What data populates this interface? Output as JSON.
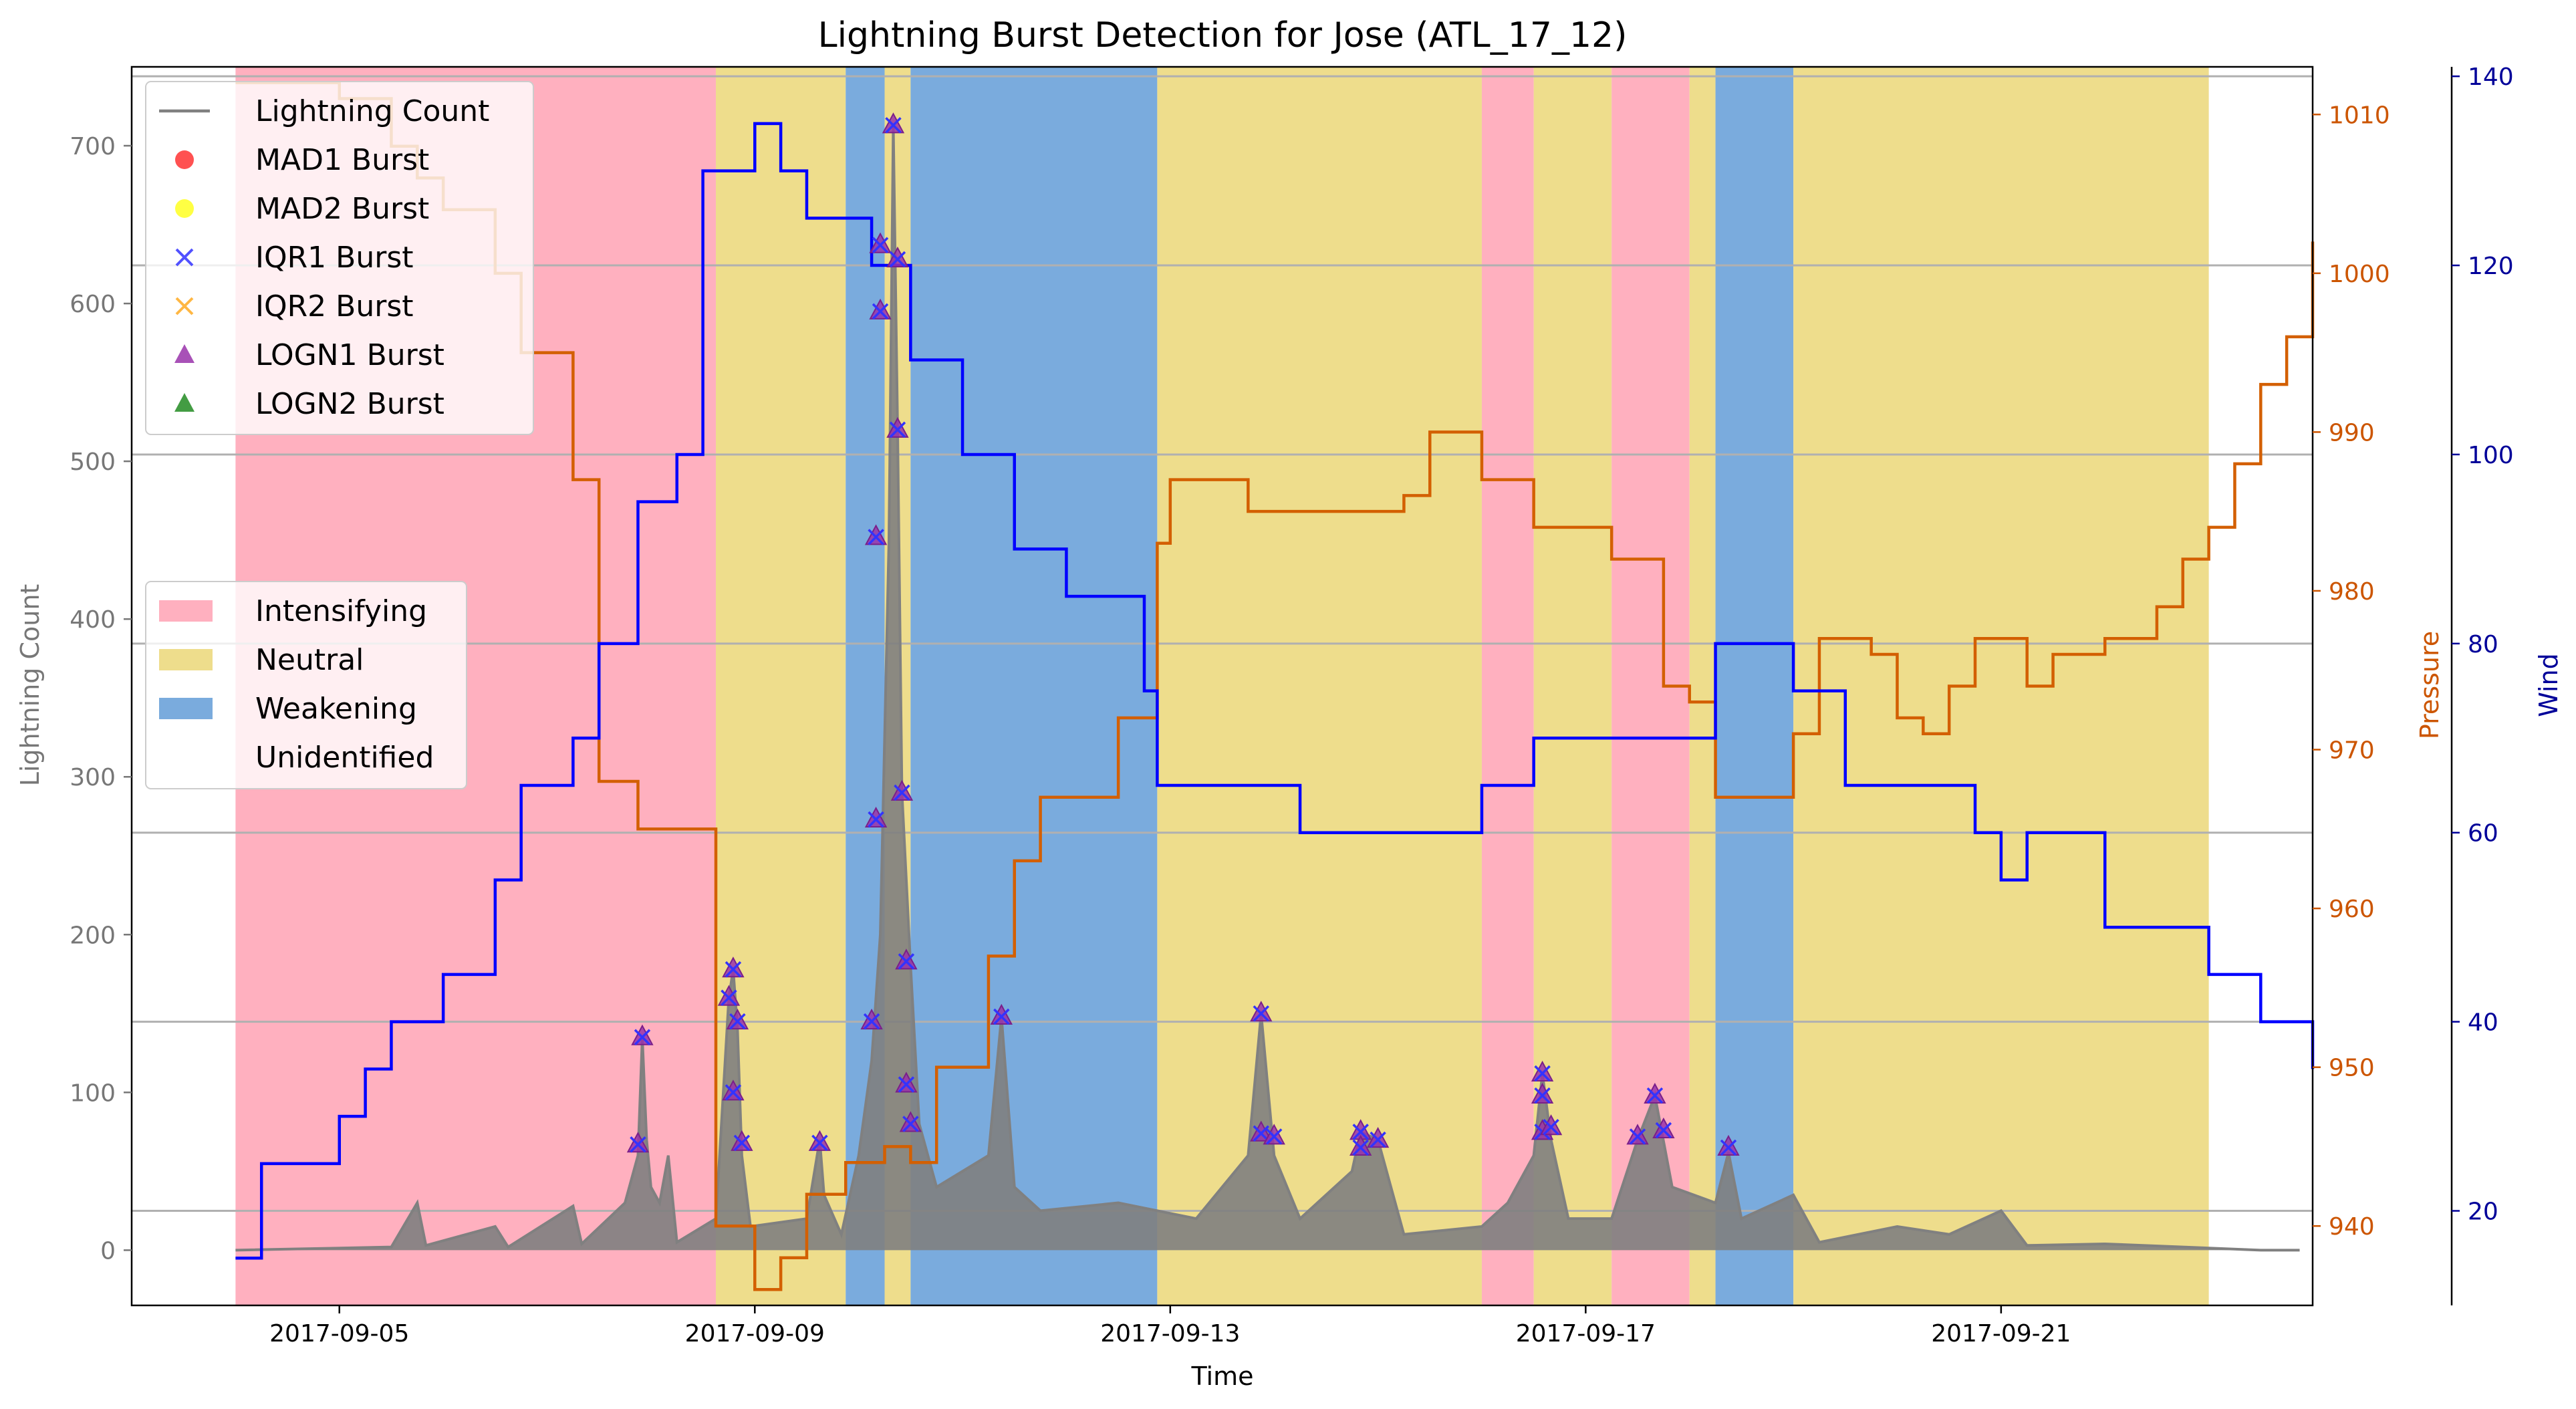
{
  "chart_data": {
    "type": "line",
    "title": "Lightning Burst Detection for Jose (ATL_17_12)",
    "xlabel": "Time",
    "ylabel_left": "Lightning Count",
    "ylabel_pressure": "Pressure",
    "ylabel_wind": "Wind",
    "x_range": [
      "2017-09-03T00:00",
      "2017-09-24T00:00"
    ],
    "x_ticks": [
      "2017-09-05",
      "2017-09-09",
      "2017-09-13",
      "2017-09-17",
      "2017-09-21"
    ],
    "y_left_range": [
      -35,
      750
    ],
    "y_left_ticks": [
      0,
      100,
      200,
      300,
      400,
      500,
      600,
      700
    ],
    "y_pressure_range": [
      935,
      1013
    ],
    "y_pressure_ticks": [
      940,
      950,
      960,
      970,
      980,
      990,
      1000,
      1010
    ],
    "y_wind_range": [
      10,
      141
    ],
    "y_wind_ticks": [
      20,
      40,
      60,
      80,
      100,
      120,
      140
    ],
    "grid": "horizontal lines at wind ticks",
    "colors": {
      "lightning": "#808080",
      "pressure": "#d35f00",
      "wind": "#0000ff",
      "intensifying": "#ffb0bf",
      "neutral": "#eedd8c",
      "weakening": "#7aabdd",
      "pressure_axis": "#cc5500",
      "wind_axis": "#000099"
    },
    "phases": [
      {
        "phase": "Intensifying",
        "start": "2017-09-04T00:00",
        "end": "2017-09-08T15:00"
      },
      {
        "phase": "Neutral",
        "start": "2017-09-08T15:00",
        "end": "2017-09-09T21:00"
      },
      {
        "phase": "Weakening",
        "start": "2017-09-09T21:00",
        "end": "2017-09-10T06:00"
      },
      {
        "phase": "Neutral",
        "start": "2017-09-10T06:00",
        "end": "2017-09-10T12:00"
      },
      {
        "phase": "Weakening",
        "start": "2017-09-10T12:00",
        "end": "2017-09-12T21:00"
      },
      {
        "phase": "Neutral",
        "start": "2017-09-12T21:00",
        "end": "2017-09-16T00:00"
      },
      {
        "phase": "Intensifying",
        "start": "2017-09-16T00:00",
        "end": "2017-09-16T12:00"
      },
      {
        "phase": "Neutral",
        "start": "2017-09-16T12:00",
        "end": "2017-09-17T06:00"
      },
      {
        "phase": "Intensifying",
        "start": "2017-09-17T06:00",
        "end": "2017-09-18T00:00"
      },
      {
        "phase": "Neutral",
        "start": "2017-09-18T00:00",
        "end": "2017-09-18T06:00"
      },
      {
        "phase": "Weakening",
        "start": "2017-09-18T06:00",
        "end": "2017-09-19T00:00"
      },
      {
        "phase": "Neutral",
        "start": "2017-09-19T00:00",
        "end": "2017-09-23T00:00"
      }
    ],
    "series": [
      {
        "name": "Lightning Count",
        "axis": "left",
        "points": [
          [
            "2017-09-04T00:00",
            0
          ],
          [
            "2017-09-05T12:00",
            2
          ],
          [
            "2017-09-05T18:00",
            30
          ],
          [
            "2017-09-05T20:00",
            3
          ],
          [
            "2017-09-06T12:00",
            15
          ],
          [
            "2017-09-06T15:00",
            2
          ],
          [
            "2017-09-07T06:00",
            28
          ],
          [
            "2017-09-07T08:00",
            4
          ],
          [
            "2017-09-07T18:00",
            30
          ],
          [
            "2017-09-07T21:00",
            60
          ],
          [
            "2017-09-07T22:00",
            135
          ],
          [
            "2017-09-07T23:00",
            70
          ],
          [
            "2017-09-08T00:00",
            40
          ],
          [
            "2017-09-08T02:00",
            30
          ],
          [
            "2017-09-08T04:00",
            60
          ],
          [
            "2017-09-08T06:00",
            5
          ],
          [
            "2017-09-08T15:00",
            20
          ],
          [
            "2017-09-08T18:00",
            160
          ],
          [
            "2017-09-08T19:00",
            178
          ],
          [
            "2017-09-08T20:00",
            140
          ],
          [
            "2017-09-08T21:00",
            60
          ],
          [
            "2017-09-08T23:00",
            15
          ],
          [
            "2017-09-09T12:00",
            20
          ],
          [
            "2017-09-09T15:00",
            70
          ],
          [
            "2017-09-09T16:00",
            35
          ],
          [
            "2017-09-09T20:00",
            10
          ],
          [
            "2017-09-10T00:00",
            60
          ],
          [
            "2017-09-10T03:00",
            120
          ],
          [
            "2017-09-10T05:00",
            200
          ],
          [
            "2017-09-10T07:00",
            450
          ],
          [
            "2017-09-10T08:00",
            713
          ],
          [
            "2017-09-10T09:00",
            520
          ],
          [
            "2017-09-10T10:00",
            290
          ],
          [
            "2017-09-10T12:00",
            180
          ],
          [
            "2017-09-10T14:00",
            80
          ],
          [
            "2017-09-10T18:00",
            40
          ],
          [
            "2017-09-11T06:00",
            60
          ],
          [
            "2017-09-11T09:00",
            148
          ],
          [
            "2017-09-11T12:00",
            40
          ],
          [
            "2017-09-11T18:00",
            25
          ],
          [
            "2017-09-12T12:00",
            30
          ],
          [
            "2017-09-13T06:00",
            20
          ],
          [
            "2017-09-13T18:00",
            60
          ],
          [
            "2017-09-13T21:00",
            150
          ],
          [
            "2017-09-14T00:00",
            60
          ],
          [
            "2017-09-14T06:00",
            20
          ],
          [
            "2017-09-14T18:00",
            50
          ],
          [
            "2017-09-14T20:00",
            75
          ],
          [
            "2017-09-15T00:00",
            70
          ],
          [
            "2017-09-15T06:00",
            10
          ],
          [
            "2017-09-16T00:00",
            15
          ],
          [
            "2017-09-16T06:00",
            30
          ],
          [
            "2017-09-16T12:00",
            60
          ],
          [
            "2017-09-16T14:00",
            112
          ],
          [
            "2017-09-16T16:00",
            70
          ],
          [
            "2017-09-16T20:00",
            20
          ],
          [
            "2017-09-17T06:00",
            20
          ],
          [
            "2017-09-17T12:00",
            70
          ],
          [
            "2017-09-17T16:00",
            98
          ],
          [
            "2017-09-17T20:00",
            40
          ],
          [
            "2017-09-18T06:00",
            30
          ],
          [
            "2017-09-18T09:00",
            62
          ],
          [
            "2017-09-18T12:00",
            20
          ],
          [
            "2017-09-19T00:00",
            35
          ],
          [
            "2017-09-19T06:00",
            5
          ],
          [
            "2017-09-20T00:00",
            15
          ],
          [
            "2017-09-20T12:00",
            10
          ],
          [
            "2017-09-21T00:00",
            25
          ],
          [
            "2017-09-21T06:00",
            3
          ],
          [
            "2017-09-22T00:00",
            4
          ],
          [
            "2017-09-23T12:00",
            0
          ],
          [
            "2017-09-23T21:00",
            0
          ]
        ]
      },
      {
        "name": "Pressure",
        "axis": "pressure",
        "points": [
          [
            "2017-09-04T00:00",
            1012
          ],
          [
            "2017-09-05T00:00",
            1011
          ],
          [
            "2017-09-05T12:00",
            1008
          ],
          [
            "2017-09-05T18:00",
            1006
          ],
          [
            "2017-09-06T00:00",
            1004
          ],
          [
            "2017-09-06T12:00",
            1000
          ],
          [
            "2017-09-06T18:00",
            995
          ],
          [
            "2017-09-07T06:00",
            987
          ],
          [
            "2017-09-07T12:00",
            968
          ],
          [
            "2017-09-07T21:00",
            965
          ],
          [
            "2017-09-08T15:00",
            940
          ],
          [
            "2017-09-09T00:00",
            936
          ],
          [
            "2017-09-09T06:00",
            938
          ],
          [
            "2017-09-09T12:00",
            942
          ],
          [
            "2017-09-09T21:00",
            944
          ],
          [
            "2017-09-10T06:00",
            945
          ],
          [
            "2017-09-10T12:00",
            944
          ],
          [
            "2017-09-10T18:00",
            950
          ],
          [
            "2017-09-11T06:00",
            957
          ],
          [
            "2017-09-11T12:00",
            963
          ],
          [
            "2017-09-11T18:00",
            967
          ],
          [
            "2017-09-12T12:00",
            972
          ],
          [
            "2017-09-12T21:00",
            983
          ],
          [
            "2017-09-13T00:00",
            987
          ],
          [
            "2017-09-13T18:00",
            985
          ],
          [
            "2017-09-14T06:00",
            985
          ],
          [
            "2017-09-15T06:00",
            986
          ],
          [
            "2017-09-15T12:00",
            990
          ],
          [
            "2017-09-16T00:00",
            987
          ],
          [
            "2017-09-16T12:00",
            984
          ],
          [
            "2017-09-17T06:00",
            982
          ],
          [
            "2017-09-17T18:00",
            974
          ],
          [
            "2017-09-18T00:00",
            973
          ],
          [
            "2017-09-18T06:00",
            967
          ],
          [
            "2017-09-19T00:00",
            971
          ],
          [
            "2017-09-19T06:00",
            977
          ],
          [
            "2017-09-19T18:00",
            976
          ],
          [
            "2017-09-20T00:00",
            972
          ],
          [
            "2017-09-20T06:00",
            971
          ],
          [
            "2017-09-20T12:00",
            974
          ],
          [
            "2017-09-20T18:00",
            977
          ],
          [
            "2017-09-21T06:00",
            974
          ],
          [
            "2017-09-21T12:00",
            976
          ],
          [
            "2017-09-22T00:00",
            977
          ],
          [
            "2017-09-22T12:00",
            979
          ],
          [
            "2017-09-22T18:00",
            982
          ],
          [
            "2017-09-23T00:00",
            984
          ],
          [
            "2017-09-23T06:00",
            988
          ],
          [
            "2017-09-23T12:00",
            993
          ],
          [
            "2017-09-23T18:00",
            996
          ],
          [
            "2017-09-24T00:00",
            1002
          ]
        ]
      },
      {
        "name": "Wind",
        "axis": "wind",
        "points": [
          [
            "2017-09-04T00:00",
            15
          ],
          [
            "2017-09-04T06:00",
            25
          ],
          [
            "2017-09-05T00:00",
            30
          ],
          [
            "2017-09-05T06:00",
            35
          ],
          [
            "2017-09-05T12:00",
            40
          ],
          [
            "2017-09-06T00:00",
            45
          ],
          [
            "2017-09-06T12:00",
            55
          ],
          [
            "2017-09-06T18:00",
            65
          ],
          [
            "2017-09-07T06:00",
            70
          ],
          [
            "2017-09-07T12:00",
            80
          ],
          [
            "2017-09-07T21:00",
            95
          ],
          [
            "2017-09-08T06:00",
            100
          ],
          [
            "2017-09-08T12:00",
            130
          ],
          [
            "2017-09-09T00:00",
            135
          ],
          [
            "2017-09-09T06:00",
            130
          ],
          [
            "2017-09-09T12:00",
            125
          ],
          [
            "2017-09-10T03:00",
            120
          ],
          [
            "2017-09-10T12:00",
            110
          ],
          [
            "2017-09-11T00:00",
            100
          ],
          [
            "2017-09-11T12:00",
            90
          ],
          [
            "2017-09-12T00:00",
            85
          ],
          [
            "2017-09-12T18:00",
            75
          ],
          [
            "2017-09-12T21:00",
            65
          ],
          [
            "2017-09-14T06:00",
            60
          ],
          [
            "2017-09-16T00:00",
            65
          ],
          [
            "2017-09-16T12:00",
            70
          ],
          [
            "2017-09-18T06:00",
            80
          ],
          [
            "2017-09-19T00:00",
            75
          ],
          [
            "2017-09-19T12:00",
            65
          ],
          [
            "2017-09-20T18:00",
            60
          ],
          [
            "2017-09-21T00:00",
            55
          ],
          [
            "2017-09-21T06:00",
            60
          ],
          [
            "2017-09-22T00:00",
            50
          ],
          [
            "2017-09-23T00:00",
            45
          ],
          [
            "2017-09-23T12:00",
            40
          ],
          [
            "2017-09-24T00:00",
            35
          ]
        ]
      }
    ],
    "bursts": [
      {
        "time": "2017-09-07T22:00",
        "count": 135
      },
      {
        "time": "2017-09-07T21:00",
        "count": 67
      },
      {
        "time": "2017-09-08T18:00",
        "count": 160
      },
      {
        "time": "2017-09-08T19:00",
        "count": 178
      },
      {
        "time": "2017-09-08T20:00",
        "count": 145
      },
      {
        "time": "2017-09-08T19:00",
        "count": 100
      },
      {
        "time": "2017-09-08T21:00",
        "count": 68
      },
      {
        "time": "2017-09-09T15:00",
        "count": 68
      },
      {
        "time": "2017-09-10T03:00",
        "count": 145
      },
      {
        "time": "2017-09-10T04:00",
        "count": 273
      },
      {
        "time": "2017-09-10T04:00",
        "count": 452
      },
      {
        "time": "2017-09-10T05:00",
        "count": 595
      },
      {
        "time": "2017-09-10T05:00",
        "count": 637
      },
      {
        "time": "2017-09-10T08:00",
        "count": 713
      },
      {
        "time": "2017-09-10T09:00",
        "count": 628
      },
      {
        "time": "2017-09-10T09:00",
        "count": 520
      },
      {
        "time": "2017-09-10T10:00",
        "count": 290
      },
      {
        "time": "2017-09-10T11:00",
        "count": 183
      },
      {
        "time": "2017-09-10T11:00",
        "count": 105
      },
      {
        "time": "2017-09-10T12:00",
        "count": 80
      },
      {
        "time": "2017-09-11T09:00",
        "count": 148
      },
      {
        "time": "2017-09-13T21:00",
        "count": 150
      },
      {
        "time": "2017-09-13T21:00",
        "count": 74
      },
      {
        "time": "2017-09-14T00:00",
        "count": 72
      },
      {
        "time": "2017-09-14T20:00",
        "count": 75
      },
      {
        "time": "2017-09-14T20:00",
        "count": 65
      },
      {
        "time": "2017-09-15T00:00",
        "count": 70
      },
      {
        "time": "2017-09-16T14:00",
        "count": 112
      },
      {
        "time": "2017-09-16T14:00",
        "count": 98
      },
      {
        "time": "2017-09-16T14:00",
        "count": 75
      },
      {
        "time": "2017-09-16T16:00",
        "count": 78
      },
      {
        "time": "2017-09-17T12:00",
        "count": 72
      },
      {
        "time": "2017-09-17T16:00",
        "count": 98
      },
      {
        "time": "2017-09-17T18:00",
        "count": 76
      },
      {
        "time": "2017-09-18T09:00",
        "count": 65
      }
    ],
    "legend_lines": {
      "placement": "top-left",
      "entries": [
        {
          "label": "Lightning Count",
          "marker": "line",
          "color": "#808080"
        },
        {
          "label": "MAD1 Burst",
          "marker": "circle",
          "color": "#ff3333"
        },
        {
          "label": "MAD2 Burst",
          "marker": "circle",
          "color": "#ffff22"
        },
        {
          "label": "IQR1 Burst",
          "marker": "x",
          "color": "#3333ff"
        },
        {
          "label": "IQR2 Burst",
          "marker": "x",
          "color": "#ffaa22"
        },
        {
          "label": "LOGN1 Burst",
          "marker": "triangle",
          "color": "#9933aa"
        },
        {
          "label": "LOGN2 Burst",
          "marker": "triangle",
          "color": "#228B22"
        }
      ]
    },
    "legend_phases": {
      "placement": "center-left",
      "entries": [
        {
          "label": "Intensifying",
          "color": "#ffb0bf"
        },
        {
          "label": "Neutral",
          "color": "#eedd8c"
        },
        {
          "label": "Weakening",
          "color": "#7aabdd"
        },
        {
          "label": "Unidentified",
          "color": "#ffffff"
        }
      ]
    }
  }
}
